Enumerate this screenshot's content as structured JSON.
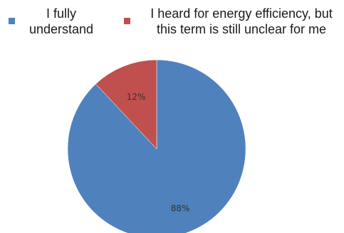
{
  "chart_data": {
    "type": "pie",
    "categories": [
      "I fully understand",
      "I heard for energy efficiency, but this term is still unclear for me"
    ],
    "values": [
      88,
      12
    ],
    "data_labels": [
      "88%",
      "12%"
    ],
    "colors": [
      "#4f81bd",
      "#c0504d"
    ],
    "legend_position": "top",
    "start_angle_deg": 0,
    "direction": "clockwise"
  },
  "legend": {
    "items": [
      {
        "label": "I fully\nunderstand",
        "color": "#4f81bd"
      },
      {
        "label": "I heard for energy efficiency, but\nthis term is still unclear for me",
        "color": "#c0504d"
      }
    ]
  }
}
